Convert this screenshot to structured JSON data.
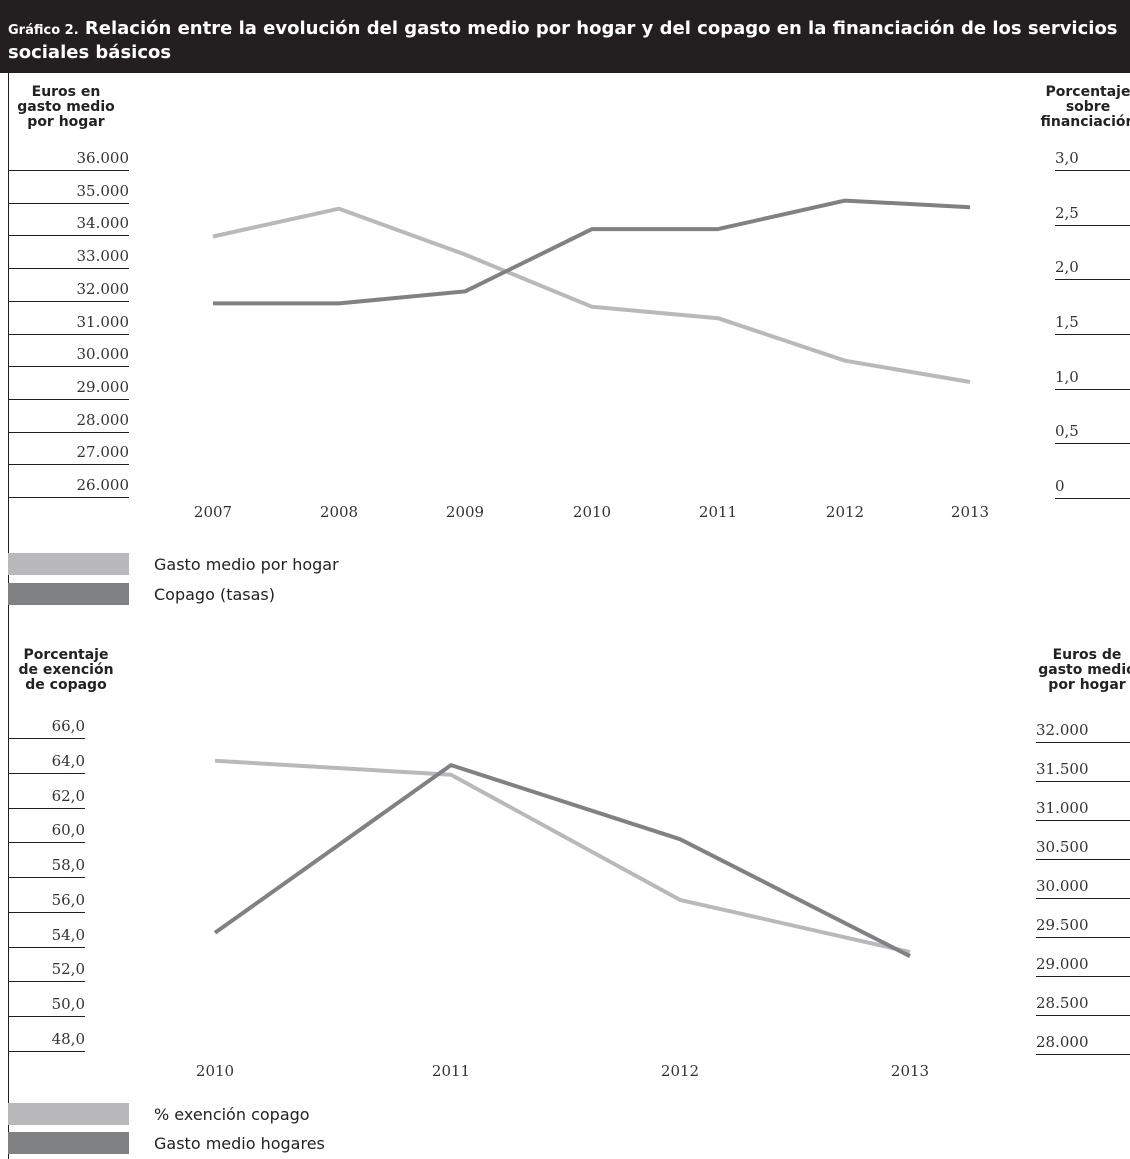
{
  "title": {
    "prefix": "Gráfico 2.",
    "text": "Relación entre la evolución del gasto medio por hogar y del copago en la financiación de los servicios sociales básicos"
  },
  "colors": {
    "light": "#b9b9bb",
    "dark": "#808183",
    "rule": "#231f20"
  },
  "chart_data": [
    {
      "type": "line",
      "left_axis_title": [
        "Euros en",
        "gasto medio",
        "por hogar"
      ],
      "right_axis_title": [
        "Porcentaje",
        "sobre",
        "financiación"
      ],
      "left_ticks": [
        "36.000",
        "35.000",
        "34.000",
        "33.000",
        "32.000",
        "31.000",
        "30.000",
        "29.000",
        "28.000",
        "27.000",
        "26.000"
      ],
      "right_ticks": [
        "3,0",
        "2,5",
        "2,0",
        "1,5",
        "1,0",
        "0,5",
        "0"
      ],
      "x": [
        "2007",
        "2008",
        "2009",
        "2010",
        "2011",
        "2012",
        "2013"
      ],
      "left_ylim": [
        26000,
        36000
      ],
      "right_ylim": [
        0,
        3.0
      ],
      "series": [
        {
          "name": "Gasto medio por hogar",
          "axis": "left",
          "color": "light",
          "values": [
            33600,
            34450,
            33050,
            31450,
            31100,
            29800,
            29150
          ]
        },
        {
          "name": "Copago (tasas)",
          "axis": "right",
          "color": "dark",
          "values": [
            1.67,
            1.67,
            1.78,
            2.35,
            2.35,
            2.61,
            2.55
          ]
        }
      ]
    },
    {
      "type": "line",
      "left_axis_title": [
        "Porcentaje",
        "de exención",
        "de copago"
      ],
      "right_axis_title": [
        "Euros de",
        "gasto medio",
        "por hogar"
      ],
      "left_ticks": [
        "66,0",
        "64,0",
        "62,0",
        "60,0",
        "58,0",
        "56,0",
        "54,0",
        "52,0",
        "50,0",
        "48,0"
      ],
      "right_ticks": [
        "32.000",
        "31.500",
        "31.000",
        "30.500",
        "30.000",
        "29.500",
        "29.000",
        "28.500",
        "28.000"
      ],
      "x": [
        "2010",
        "2011",
        "2012",
        "2013"
      ],
      "left_ylim": [
        48.0,
        66.0
      ],
      "right_ylim": [
        28000,
        32000
      ],
      "series": [
        {
          "name": "% exención copago",
          "axis": "left",
          "color": "light",
          "values": [
            64.0,
            63.2,
            56.0,
            53.0
          ]
        },
        {
          "name": "Gasto medio hogares",
          "axis": "right",
          "color": "dark",
          "values": [
            29400,
            31550,
            30600,
            29100
          ]
        }
      ]
    }
  ]
}
